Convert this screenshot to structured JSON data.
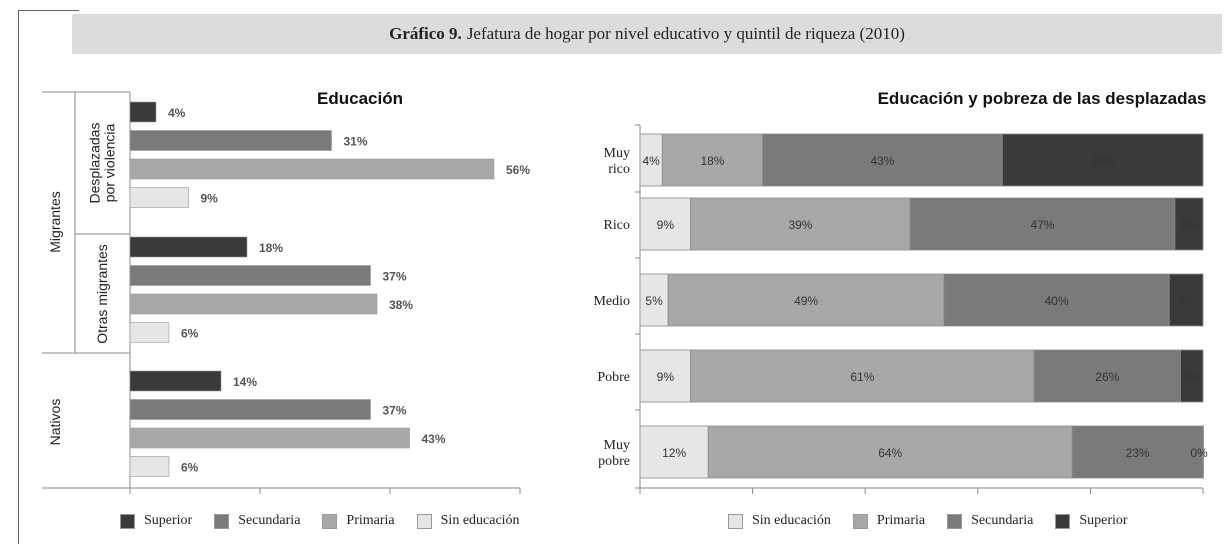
{
  "header": {
    "title_bold": "Gráfico 9.",
    "title_rest": "Jefatura de hogar por nivel educativo y quintil de riqueza (2010)"
  },
  "colors": {
    "superior": "#3a3a3a",
    "secundaria": "#7a7a7a",
    "primaria": "#a8a8a8",
    "sin_educacion": "#e6e6e6"
  },
  "chart_data": [
    {
      "type": "bar",
      "orientation": "horizontal",
      "title": "Educación",
      "outer_groups": [
        {
          "label": "Migrantes",
          "subgroups": [
            "Desplazadas por violencia",
            "Otras migrantes"
          ]
        },
        {
          "label": "Nativos",
          "subgroups": []
        }
      ],
      "groups": [
        "Desplazadas por violencia",
        "Otras migrantes",
        "Nativos"
      ],
      "group_lines": [
        [
          "Desplazadas",
          "por violencia"
        ],
        [
          "Otras migrantes"
        ],
        [
          "Nativos"
        ]
      ],
      "outer_lines": [
        [
          "Migrantes"
        ],
        [
          "Nativos"
        ]
      ],
      "series": [
        {
          "name": "Superior",
          "values": [
            4,
            18,
            14
          ],
          "labels": [
            "4%",
            "18%",
            "14%"
          ]
        },
        {
          "name": "Secundaria",
          "values": [
            31,
            37,
            37
          ],
          "labels": [
            "31%",
            "37%",
            "37%"
          ]
        },
        {
          "name": "Primaria",
          "values": [
            56,
            38,
            43
          ],
          "labels": [
            "56%",
            "38%",
            "43%"
          ]
        },
        {
          "name": "Sin educación",
          "values": [
            9,
            6,
            6
          ],
          "labels": [
            "9%",
            "6%",
            "6%"
          ]
        }
      ],
      "xlim": [
        0,
        60
      ],
      "legend": [
        "Superior",
        "Secundaria",
        "Primaria",
        "Sin educación"
      ],
      "legend_position": "bottom"
    },
    {
      "type": "bar",
      "orientation": "horizontal",
      "stacked": true,
      "title": "Educación y pobreza de las desplazadas",
      "categories": [
        "Muy rico",
        "Rico",
        "Medio",
        "Pobre",
        "Muy pobre"
      ],
      "category_lines": [
        [
          "Muy",
          "rico"
        ],
        [
          "Rico"
        ],
        [
          "Medio"
        ],
        [
          "Pobre"
        ],
        [
          "Muy",
          "pobre"
        ]
      ],
      "series": [
        {
          "name": "Sin educación",
          "values": [
            4,
            9,
            5,
            9,
            12
          ],
          "labels": [
            "4%",
            "9%",
            "5%",
            "9%",
            "12%"
          ]
        },
        {
          "name": "Primaria",
          "values": [
            18,
            39,
            49,
            61,
            64
          ],
          "labels": [
            "18%",
            "39%",
            "49%",
            "61%",
            "64%"
          ]
        },
        {
          "name": "Secundaria",
          "values": [
            43,
            47,
            40,
            26,
            23
          ],
          "labels": [
            "43%",
            "47%",
            "40%",
            "26%",
            "23%"
          ]
        },
        {
          "name": "Superior",
          "values": [
            36,
            5,
            6,
            4,
            0
          ],
          "labels": [
            "36%",
            "5%",
            "6%",
            "4%",
            "0%"
          ]
        }
      ],
      "xlim": [
        0,
        100
      ],
      "legend": [
        "Sin educación",
        "Primaria",
        "Secundaria",
        "Superior"
      ],
      "legend_position": "bottom"
    }
  ]
}
